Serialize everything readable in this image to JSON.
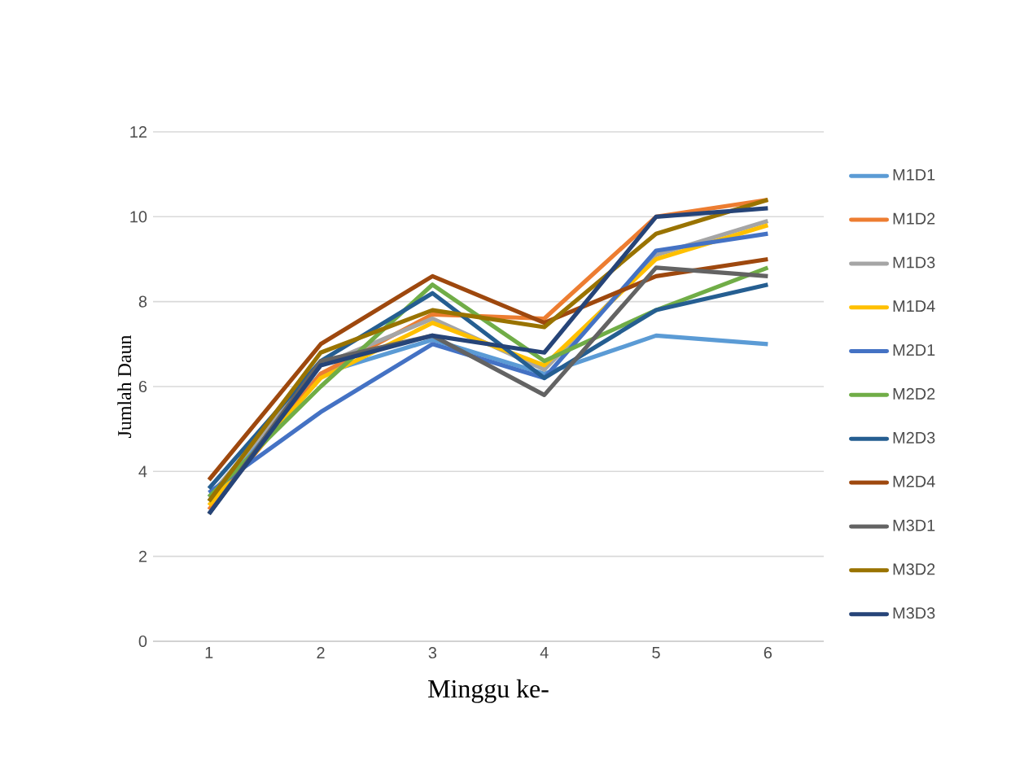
{
  "chart_data": {
    "type": "line",
    "xlabel": "Minggu  ke-",
    "ylabel": "Jumlah Daun",
    "categories": [
      "1",
      "2",
      "3",
      "4",
      "5",
      "6"
    ],
    "ylim": [
      0,
      12
    ],
    "yticks": [
      0,
      2,
      4,
      6,
      8,
      10,
      12
    ],
    "grid": "y",
    "legend": "right",
    "line_style": "solid",
    "marker": "none",
    "series": [
      {
        "name": "M1D1",
        "color": "#5b9bd5",
        "values": [
          3.3,
          6.3,
          7.1,
          6.3,
          7.2,
          7.0
        ]
      },
      {
        "name": "M1D2",
        "color": "#ed7d31",
        "values": [
          3.1,
          6.3,
          7.7,
          7.6,
          10.0,
          10.4
        ]
      },
      {
        "name": "M1D3",
        "color": "#a5a5a5",
        "values": [
          3.4,
          6.5,
          7.6,
          6.4,
          9.1,
          9.9
        ]
      },
      {
        "name": "M1D4",
        "color": "#ffc000",
        "values": [
          3.2,
          6.2,
          7.5,
          6.5,
          9.0,
          9.8
        ]
      },
      {
        "name": "M2D1",
        "color": "#4472c4",
        "values": [
          3.5,
          5.4,
          7.0,
          6.2,
          9.2,
          9.6
        ]
      },
      {
        "name": "M2D2",
        "color": "#70ad47",
        "values": [
          3.4,
          6.0,
          8.4,
          6.6,
          7.8,
          8.8
        ]
      },
      {
        "name": "M2D3",
        "color": "#255e91",
        "values": [
          3.6,
          6.6,
          8.2,
          6.2,
          7.8,
          8.4
        ]
      },
      {
        "name": "M2D4",
        "color": "#9e480e",
        "values": [
          3.8,
          7.0,
          8.6,
          7.5,
          8.6,
          9.0
        ]
      },
      {
        "name": "M3D1",
        "color": "#636363",
        "values": [
          3.0,
          6.6,
          7.2,
          5.8,
          8.8,
          8.6
        ]
      },
      {
        "name": "M3D2",
        "color": "#997300",
        "values": [
          3.3,
          6.8,
          7.8,
          7.4,
          9.6,
          10.4
        ]
      },
      {
        "name": "M3D3",
        "color": "#264478",
        "values": [
          3.0,
          6.5,
          7.2,
          6.8,
          10.0,
          10.2
        ]
      }
    ]
  }
}
